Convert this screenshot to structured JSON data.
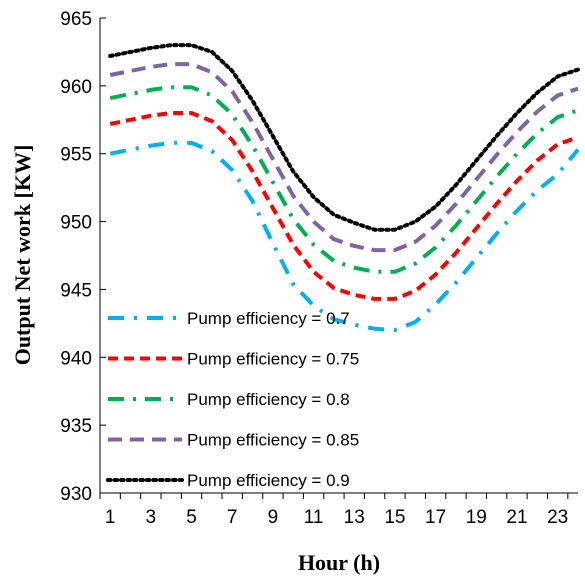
{
  "chart_data": {
    "type": "line",
    "xlabel": "Hour (h)",
    "ylabel": "Output Net work [KW]",
    "xlim": [
      0.5,
      24
    ],
    "ylim": [
      930,
      965
    ],
    "x_ticks": [
      "1",
      "3",
      "5",
      "7",
      "9",
      "11",
      "13",
      "15",
      "17",
      "19",
      "21",
      "23"
    ],
    "y_ticks": [
      "930",
      "935",
      "940",
      "945",
      "950",
      "955",
      "960",
      "965"
    ],
    "grid": false,
    "legend_position": "lower-left",
    "x": [
      1,
      2,
      3,
      4,
      5,
      6,
      7,
      8,
      9,
      10,
      11,
      12,
      13,
      14,
      15,
      16,
      17,
      18,
      19,
      20,
      21,
      22,
      23,
      24
    ],
    "series": [
      {
        "name": "Pump efficiency = 0.7",
        "color": "#00b0f0",
        "dash": "dash-dot",
        "values": [
          955.0,
          955.3,
          955.6,
          955.8,
          955.8,
          955.2,
          953.8,
          951.5,
          948.4,
          945.4,
          943.8,
          942.8,
          942.4,
          942.1,
          942.0,
          942.6,
          943.9,
          945.5,
          947.3,
          949.1,
          950.8,
          952.3,
          953.5,
          955.3
        ]
      },
      {
        "name": "Pump efficiency = 0.75",
        "color": "#ff0000",
        "dash": "dash",
        "values": [
          957.2,
          957.5,
          957.8,
          958.0,
          958.0,
          957.4,
          956.0,
          953.7,
          951.0,
          948.3,
          946.3,
          945.1,
          944.6,
          944.3,
          944.3,
          944.9,
          946.1,
          947.7,
          949.5,
          951.3,
          953.0,
          954.5,
          955.7,
          956.2
        ]
      },
      {
        "name": "Pump efficiency = 0.8",
        "color": "#00b050",
        "dash": "long-dash-dot",
        "values": [
          959.1,
          959.4,
          959.7,
          959.9,
          959.9,
          959.3,
          957.9,
          955.6,
          952.9,
          950.2,
          948.3,
          947.1,
          946.6,
          946.3,
          946.3,
          946.9,
          948.1,
          949.7,
          951.5,
          953.3,
          955.0,
          956.5,
          957.7,
          958.2
        ]
      },
      {
        "name": "Pump efficiency = 0.85",
        "color": "#8064a2",
        "dash": "long-dash",
        "values": [
          960.8,
          961.1,
          961.4,
          961.6,
          961.6,
          961.0,
          959.6,
          957.3,
          954.6,
          951.9,
          950.0,
          948.7,
          948.2,
          947.9,
          947.9,
          948.5,
          949.7,
          951.3,
          953.1,
          954.9,
          956.6,
          958.1,
          959.3,
          959.8
        ]
      },
      {
        "name": "Pump efficiency = 0.9",
        "color": "#000000",
        "dash": "dot",
        "values": [
          962.2,
          962.5,
          962.8,
          963.0,
          963.0,
          962.5,
          961.1,
          958.9,
          956.3,
          953.7,
          951.8,
          950.5,
          949.9,
          949.4,
          949.4,
          950.0,
          951.1,
          952.7,
          954.5,
          956.3,
          958.0,
          959.5,
          960.7,
          961.2
        ]
      }
    ]
  }
}
